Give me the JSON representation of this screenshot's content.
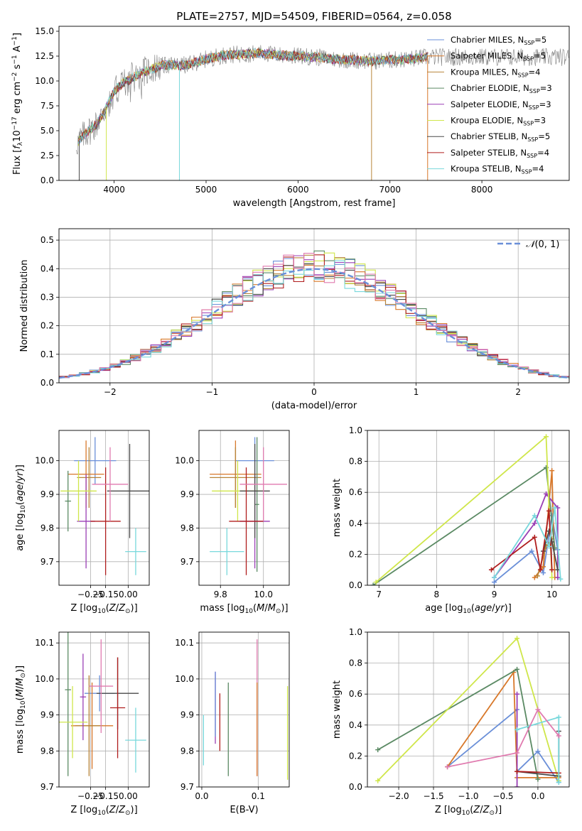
{
  "figure": {
    "title": "PLATE=2757, MJD=54509, FIBERID=0564, z=0.058"
  },
  "colors": {
    "c0": "#6a8fd8",
    "c1": "#d8782a",
    "c2": "#b8843a",
    "c3": "#5b8a64",
    "c4": "#9a3fb5",
    "c5": "#cfe64a",
    "c6": "#4a4a4a",
    "c7": "#b01e1e",
    "c8": "#78d8dc",
    "pink": "#e07aaf",
    "data": "#7f7f7f",
    "normal": "#6a8fd8"
  },
  "chart_data": [
    {
      "id": "spectrum",
      "type": "line",
      "xlabel": "wavelength [Angstrom, rest frame]",
      "ylabel": "Flux [f_λ10^-17 erg cm^-2 s^-1 A^-1]",
      "xlim": [
        3400,
        8950
      ],
      "ylim": [
        0,
        15.5
      ],
      "xticks": [
        4000,
        5000,
        6000,
        7000,
        8000
      ],
      "yticks": [
        0.0,
        2.5,
        5.0,
        7.5,
        10.0,
        12.5,
        15.0
      ],
      "grid": false,
      "legend_position": "upper-right",
      "series": [
        {
          "name": "Chabrier MILES, N_SSP=5",
          "color_key": "c0"
        },
        {
          "name": "Salpeter MILES, N_SSP=5",
          "color_key": "c1"
        },
        {
          "name": "Kroupa MILES, N_SSP=4",
          "color_key": "c2"
        },
        {
          "name": "Chabrier ELODIE, N_SSP=3",
          "color_key": "c3"
        },
        {
          "name": "Salpeter ELODIE, N_SSP=3",
          "color_key": "c4"
        },
        {
          "name": "Kroupa ELODIE, N_SSP=3",
          "color_key": "c5"
        },
        {
          "name": "Chabrier STELIB, N_SSP=5",
          "color_key": "c6"
        },
        {
          "name": "Salpeter STELIB, N_SSP=4",
          "color_key": "c7"
        },
        {
          "name": "Kroupa STELIB, N_SSP=4",
          "color_key": "c8"
        }
      ],
      "continuum": {
        "x": [
          3600,
          3700,
          3800,
          3900,
          4000,
          4100,
          4200,
          4300,
          4400,
          4500,
          4600,
          4800,
          5000,
          5200,
          5400,
          5600,
          5800,
          6000,
          6200,
          6400,
          6600,
          6800,
          7000,
          7200,
          7400
        ],
        "y": [
          3.8,
          4.8,
          5.6,
          7.0,
          9.0,
          9.8,
          10.3,
          10.8,
          11.2,
          11.5,
          11.6,
          11.6,
          12.2,
          12.6,
          12.7,
          12.8,
          12.6,
          12.5,
          12.4,
          12.2,
          12.1,
          12.0,
          12.1,
          12.2,
          12.4
        ]
      }
    },
    {
      "id": "residuals",
      "type": "histogram",
      "xlabel": "(data-model)/error",
      "ylabel": "Normed distribution",
      "xlim": [
        -2.5,
        2.5
      ],
      "ylim": [
        0,
        0.54
      ],
      "xticks": [
        -2,
        -1,
        0,
        1,
        2
      ],
      "yticks": [
        0.0,
        0.1,
        0.2,
        0.3,
        0.4,
        0.5
      ],
      "grid": true,
      "legend": [
        {
          "label": "N(0,1)",
          "style": "dashed",
          "color_key": "normal"
        }
      ],
      "legend_position": "upper-right",
      "bin_width": 0.1
    },
    {
      "id": "age_vs_Z",
      "type": "errorbar",
      "xlabel": "Z [log10(Z/Z⊙)]",
      "ylabel": "age  [log10(age/yr)]",
      "xlim": [
        -0.46,
        0.14
      ],
      "ylim": [
        9.63,
        10.09
      ],
      "xticks": [
        -0.25,
        -0.15,
        0.0
      ],
      "xtick_labels": [
        "−0.25",
        "−0.15",
        "0.00"
      ],
      "yticks": [
        9.7,
        9.8,
        9.9,
        10.0
      ],
      "grid": true,
      "points": [
        {
          "x": -0.22,
          "y": 10.0,
          "xerr": 0.14,
          "yerr": 0.07,
          "color_key": "c0"
        },
        {
          "x": -0.28,
          "y": 9.96,
          "xerr": 0.12,
          "yerr": 0.1,
          "color_key": "c1"
        },
        {
          "x": -0.26,
          "y": 9.95,
          "xerr": 0.08,
          "yerr": 0.09,
          "color_key": "c2"
        },
        {
          "x": -0.4,
          "y": 9.88,
          "xerr": 0.02,
          "yerr": 0.09,
          "color_key": "c3"
        },
        {
          "x": -0.28,
          "y": 9.82,
          "xerr": 0.06,
          "yerr": 0.14,
          "color_key": "c4"
        },
        {
          "x": -0.33,
          "y": 9.91,
          "xerr": 0.12,
          "yerr": 0.09,
          "color_key": "c5"
        },
        {
          "x": 0.01,
          "y": 9.91,
          "xerr": 0.15,
          "yerr": 0.14,
          "color_key": "c6"
        },
        {
          "x": -0.15,
          "y": 9.82,
          "xerr": 0.1,
          "yerr": 0.16,
          "color_key": "c7"
        },
        {
          "x": 0.05,
          "y": 9.73,
          "xerr": 0.07,
          "yerr": 0.07,
          "color_key": "c8"
        },
        {
          "x": -0.12,
          "y": 9.93,
          "xerr": 0.12,
          "yerr": 0.11,
          "color_key": "pink"
        }
      ]
    },
    {
      "id": "age_vs_mass",
      "type": "errorbar",
      "xlabel": "mass [log10(M/M⊙)]",
      "ylabel": "",
      "xlim": [
        9.7,
        10.12
      ],
      "ylim": [
        9.63,
        10.09
      ],
      "xticks": [
        9.8,
        10.0
      ],
      "xtick_labels": [
        "9.8",
        "10.0"
      ],
      "yticks": [
        9.7,
        9.8,
        9.9,
        10.0
      ],
      "grid": true,
      "points": [
        {
          "x": 9.96,
          "y": 10.0,
          "xerr": 0.09,
          "yerr": 0.07,
          "color_key": "c0"
        },
        {
          "x": 9.87,
          "y": 9.96,
          "xerr": 0.12,
          "yerr": 0.1,
          "color_key": "c1"
        },
        {
          "x": 9.87,
          "y": 9.95,
          "xerr": 0.12,
          "yerr": 0.09,
          "color_key": "c2"
        },
        {
          "x": 9.97,
          "y": 9.87,
          "xerr": 0.01,
          "yerr": 0.2,
          "color_key": "c3"
        },
        {
          "x": 9.96,
          "y": 9.82,
          "xerr": 0.07,
          "yerr": 0.14,
          "color_key": "c4"
        },
        {
          "x": 9.88,
          "y": 9.91,
          "xerr": 0.12,
          "yerr": 0.09,
          "color_key": "c5"
        },
        {
          "x": 9.96,
          "y": 9.91,
          "xerr": 0.07,
          "yerr": 0.14,
          "color_key": "c6"
        },
        {
          "x": 9.92,
          "y": 9.82,
          "xerr": 0.08,
          "yerr": 0.16,
          "color_key": "c7"
        },
        {
          "x": 9.83,
          "y": 9.73,
          "xerr": 0.08,
          "yerr": 0.07,
          "color_key": "c8"
        },
        {
          "x": 10.0,
          "y": 9.93,
          "xerr": 0.11,
          "yerr": 0.11,
          "color_key": "pink"
        }
      ]
    },
    {
      "id": "weight_vs_age",
      "type": "line",
      "xlabel": "age  [log10(age/yr)]",
      "ylabel": "mass weight",
      "xlim": [
        6.8,
        10.3
      ],
      "ylim": [
        0,
        1.0
      ],
      "xticks": [
        7,
        8,
        9,
        10
      ],
      "yticks": [
        0.0,
        0.2,
        0.4,
        0.6,
        0.8,
        1.0
      ],
      "grid": true,
      "series": [
        {
          "color_key": "c0",
          "x": [
            9.0,
            9.65,
            9.85,
            10.0,
            10.1
          ],
          "y": [
            0.02,
            0.22,
            0.08,
            0.45,
            0.23
          ]
        },
        {
          "color_key": "c1",
          "x": [
            9.7,
            9.85,
            10.0,
            10.05
          ],
          "y": [
            0.05,
            0.12,
            0.74,
            0.05
          ]
        },
        {
          "color_key": "c2",
          "x": [
            9.75,
            9.9,
            10.0
          ],
          "y": [
            0.06,
            0.25,
            0.3
          ]
        },
        {
          "color_key": "c3",
          "x": [
            6.9,
            9.9,
            10.05
          ],
          "y": [
            0.0,
            0.76,
            0.24
          ]
        },
        {
          "color_key": "c4",
          "x": [
            9.0,
            9.7,
            9.9,
            10.1,
            10.1
          ],
          "y": [
            0.05,
            0.4,
            0.59,
            0.5,
            0.05
          ]
        },
        {
          "color_key": "c5",
          "x": [
            6.95,
            9.9,
            10.0
          ],
          "y": [
            0.02,
            0.96,
            0.05
          ]
        },
        {
          "color_key": "c6",
          "x": [
            9.85,
            9.95,
            10.0,
            10.1
          ],
          "y": [
            0.22,
            0.35,
            0.28,
            0.1
          ]
        },
        {
          "color_key": "c7",
          "x": [
            8.95,
            9.7,
            9.8,
            9.95,
            10.0
          ],
          "y": [
            0.1,
            0.31,
            0.1,
            0.48,
            0.1
          ]
        },
        {
          "color_key": "c8",
          "x": [
            9.0,
            9.7,
            9.95,
            10.05,
            10.15
          ],
          "y": [
            0.05,
            0.45,
            0.25,
            0.5,
            0.04
          ]
        }
      ]
    },
    {
      "id": "mass_vs_Z",
      "type": "errorbar",
      "xlabel": "Z [log10(Z/Z⊙)]",
      "ylabel": "mass [log10(M/M⊙)]",
      "xlim": [
        -0.46,
        0.14
      ],
      "ylim": [
        9.7,
        10.13
      ],
      "xticks": [
        -0.25,
        -0.15,
        0.0
      ],
      "xtick_labels": [
        "−0.25",
        "−0.15",
        "0.00"
      ],
      "yticks": [
        9.7,
        9.8,
        9.9,
        10.0,
        10.1
      ],
      "grid": true,
      "points": [
        {
          "x": -0.19,
          "y": 9.96,
          "xerr": 0.1,
          "yerr": 0.05,
          "color_key": "c0"
        },
        {
          "x": -0.24,
          "y": 9.87,
          "xerr": 0.14,
          "yerr": 0.12,
          "color_key": "c1"
        },
        {
          "x": -0.26,
          "y": 9.87,
          "xerr": 0.09,
          "yerr": 0.14,
          "color_key": "c2"
        },
        {
          "x": -0.4,
          "y": 9.97,
          "xerr": 0.02,
          "yerr": 0.24,
          "color_key": "c3"
        },
        {
          "x": -0.3,
          "y": 9.95,
          "xerr": 0.02,
          "yerr": 0.12,
          "color_key": "c4"
        },
        {
          "x": -0.37,
          "y": 9.88,
          "xerr": 0.1,
          "yerr": 0.1,
          "color_key": "c5"
        },
        {
          "x": -0.07,
          "y": 9.96,
          "xerr": 0.14,
          "yerr": 0.1,
          "color_key": "c6"
        },
        {
          "x": -0.07,
          "y": 9.92,
          "xerr": 0.05,
          "yerr": 0.14,
          "color_key": "c7"
        },
        {
          "x": 0.05,
          "y": 9.83,
          "xerr": 0.07,
          "yerr": 0.09,
          "color_key": "c8"
        },
        {
          "x": -0.18,
          "y": 9.98,
          "xerr": 0.08,
          "yerr": 0.13,
          "color_key": "pink"
        }
      ]
    },
    {
      "id": "mass_vs_EBV",
      "type": "errorbar",
      "xlabel": "E(B-V)",
      "ylabel": "",
      "xlim": [
        -0.005,
        0.155
      ],
      "ylim": [
        9.7,
        10.13
      ],
      "xticks": [
        0.0,
        0.1
      ],
      "xtick_labels": [
        "0.0",
        "0.1"
      ],
      "yticks": [
        9.7,
        9.8,
        9.9,
        10.0,
        10.1
      ],
      "grid": true,
      "points": [
        {
          "x": 0.003,
          "y": 9.83,
          "xerr": 0,
          "yerr": 0.07,
          "color_key": "c8"
        },
        {
          "x": 0.024,
          "y": 9.92,
          "xerr": 0,
          "yerr": 0.1,
          "color_key": "c4"
        },
        {
          "x": 0.024,
          "y": 9.93,
          "xerr": 0,
          "yerr": 0.09,
          "color_key": "c0"
        },
        {
          "x": 0.032,
          "y": 9.88,
          "xerr": 0,
          "yerr": 0.08,
          "color_key": "c7"
        },
        {
          "x": 0.047,
          "y": 9.86,
          "xerr": 0,
          "yerr": 0.13,
          "color_key": "c3"
        },
        {
          "x": 0.098,
          "y": 9.92,
          "xerr": 0,
          "yerr": 0.19,
          "color_key": "pink"
        },
        {
          "x": 0.098,
          "y": 9.86,
          "xerr": 0,
          "yerr": 0.13,
          "color_key": "c1"
        },
        {
          "x": 0.152,
          "y": 9.85,
          "xerr": 0,
          "yerr": 0.13,
          "color_key": "c5"
        }
      ]
    },
    {
      "id": "weight_vs_Z",
      "type": "line",
      "xlabel": "Z [log10(Z/Z⊙)]",
      "ylabel": "mass weight",
      "xlim": [
        -2.45,
        0.45
      ],
      "ylim": [
        0,
        1.0
      ],
      "xticks": [
        -2.0,
        -1.5,
        -1.0,
        -0.5,
        0.0
      ],
      "xtick_labels": [
        "−2.0",
        "−1.5",
        "−1.0",
        "−0.5",
        "0.0"
      ],
      "yticks": [
        0.0,
        0.2,
        0.4,
        0.6,
        0.8,
        1.0
      ],
      "grid": true,
      "series": [
        {
          "color_key": "c0",
          "x": [
            -1.3,
            -0.3,
            -0.3,
            0.0,
            0.3
          ],
          "y": [
            0.13,
            0.5,
            0.1,
            0.23,
            0.03
          ]
        },
        {
          "color_key": "c1",
          "x": [
            -1.3,
            -0.35,
            -0.3,
            0.0,
            0.3
          ],
          "y": [
            0.13,
            0.74,
            0.06,
            0.06,
            0.06
          ]
        },
        {
          "color_key": "c3",
          "x": [
            -2.3,
            -0.3,
            0.0
          ],
          "y": [
            0.24,
            0.76,
            0.05
          ]
        },
        {
          "color_key": "c4",
          "x": [
            -0.3,
            -0.3
          ],
          "y": [
            0.0,
            0.6
          ]
        },
        {
          "color_key": "c5",
          "x": [
            -2.3,
            -0.3,
            0.3
          ],
          "y": [
            0.04,
            0.96,
            0.04
          ]
        },
        {
          "color_key": "c6",
          "x": [
            -0.3,
            0.3,
            0.3
          ],
          "y": [
            0.1,
            0.07,
            0.36
          ]
        },
        {
          "color_key": "c7",
          "x": [
            -0.3,
            0.3
          ],
          "y": [
            0.1,
            0.09
          ]
        },
        {
          "color_key": "c8",
          "x": [
            -0.3,
            0.3,
            0.3
          ],
          "y": [
            0.37,
            0.45,
            0.03
          ]
        },
        {
          "color_key": "pink",
          "x": [
            -1.3,
            -0.3,
            0.0,
            0.3
          ],
          "y": [
            0.13,
            0.22,
            0.5,
            0.33
          ]
        }
      ]
    }
  ]
}
